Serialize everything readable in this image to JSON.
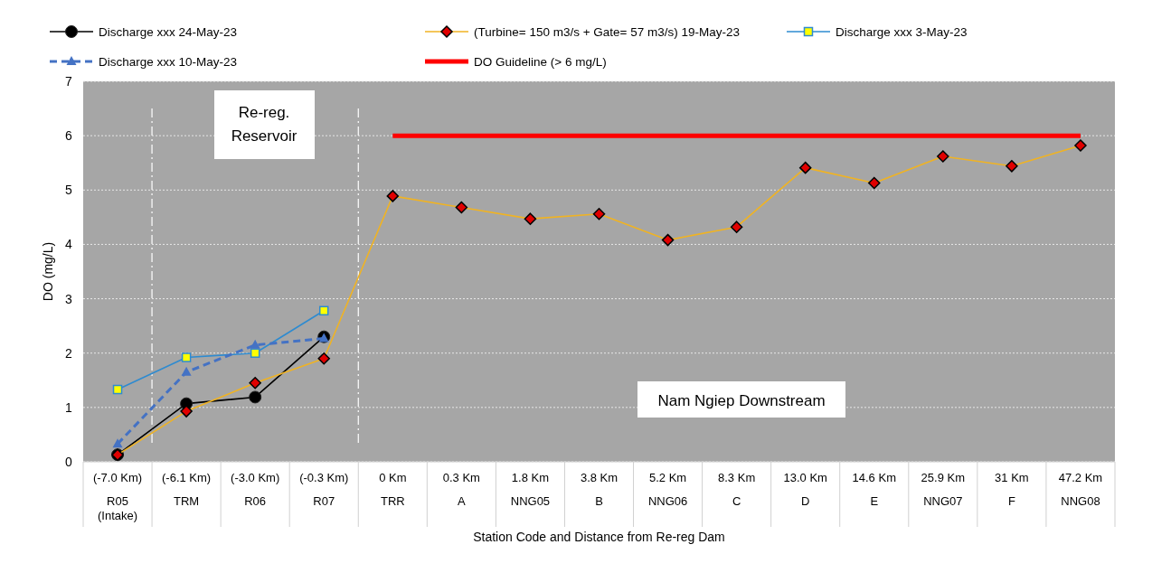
{
  "chart_data": {
    "type": "line",
    "xlabel": "Station Code and Distance from Re-reg Dam",
    "ylabel": "DO (mg/L)",
    "categories": [
      "(-7.0 Km)\nR05\n(Intake)",
      "(-6.1 Km)\nTRM",
      "(-3.0 Km)\nR06",
      "(-0.3 Km)\nR07",
      "0 Km\nTRR",
      "0.3 Km\nA",
      "1.8 Km\nNNG05",
      "3.8 Km\nB",
      "5.2 Km\nNNG06",
      "8.3 Km\nC",
      "13.0 Km\nD",
      "14.6 Km\nE",
      "25.9 Km\nNNG07",
      "31 Km\nF",
      "47.2 Km\nNNG08"
    ],
    "ylim": [
      0,
      7
    ],
    "yticks": [
      0,
      1,
      2,
      3,
      4,
      5,
      6,
      7
    ],
    "grid": "y",
    "legend": "top",
    "series": [
      {
        "name": "Discharge xxx 24-May-23",
        "color": "#000000",
        "marker": "circle",
        "line_style": "solid",
        "values": [
          0.13,
          1.07,
          1.19,
          2.3,
          null,
          null,
          null,
          null,
          null,
          null,
          null,
          null,
          null,
          null,
          null
        ]
      },
      {
        "name": "(Turbine= 150 m3/s + Gate= 57  m3/s) 19-May-23",
        "color": "#f0b323",
        "marker": "diamond",
        "line_style": "solid",
        "values": [
          0.13,
          0.93,
          1.45,
          1.9,
          4.89,
          4.68,
          4.47,
          4.56,
          4.08,
          4.32,
          5.41,
          5.13,
          5.62,
          5.44,
          5.82
        ]
      },
      {
        "name": "Discharge xxx 3-May-23",
        "color": "#2e8bd0",
        "marker": "square",
        "line_style": "solid",
        "values": [
          1.33,
          1.92,
          2.0,
          2.78,
          null,
          null,
          null,
          null,
          null,
          null,
          null,
          null,
          null,
          null,
          null
        ]
      },
      {
        "name": "Discharge xxx 10-May-23",
        "color": "#4472c4",
        "marker": "triangle",
        "line_style": "dashed",
        "values": [
          0.33,
          1.65,
          2.15,
          2.27,
          null,
          null,
          null,
          null,
          null,
          null,
          null,
          null,
          null,
          null,
          null
        ]
      },
      {
        "name": "DO Guideline (> 6 mg/L)",
        "color": "#ff0000",
        "marker": "none",
        "line_style": "solid",
        "values": [
          null,
          null,
          null,
          null,
          6,
          6,
          6,
          6,
          6,
          6,
          6,
          6,
          6,
          6,
          6
        ]
      }
    ],
    "annotations": [
      "Re-reg.\nReservoir",
      "Nam Ngiep Downstream"
    ]
  }
}
